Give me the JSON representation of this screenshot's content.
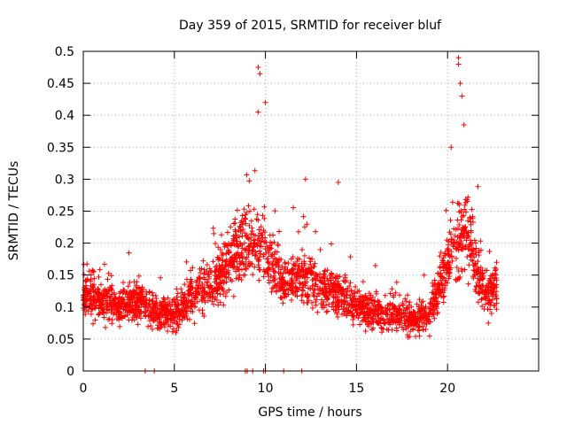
{
  "chart_data": {
    "type": "scatter",
    "title": "Day 359 of 2015, SRMTID for receiver bluf",
    "xlabel": "GPS time / hours",
    "ylabel": "SRMTID / TECUs",
    "xlim": [
      0,
      25
    ],
    "ylim": [
      0,
      0.5
    ],
    "x_ticks": [
      0,
      5,
      10,
      15,
      20
    ],
    "y_ticks": [
      0,
      0.05,
      0.1,
      0.15,
      0.2,
      0.25,
      0.3,
      0.35,
      0.4,
      0.45,
      0.5
    ],
    "grid": true,
    "marker": "+",
    "series": [
      {
        "name": "SRMTID",
        "color": "#ff0000",
        "profile_hours": [
          0,
          1,
          2,
          3,
          4,
          5,
          6,
          7,
          8,
          9,
          10,
          11,
          12,
          13,
          14,
          15,
          16,
          17,
          18,
          19,
          20,
          21,
          22,
          22.7
        ],
        "profile_median": [
          0.12,
          0.11,
          0.1,
          0.11,
          0.09,
          0.09,
          0.12,
          0.13,
          0.17,
          0.2,
          0.18,
          0.14,
          0.15,
          0.13,
          0.12,
          0.1,
          0.09,
          0.09,
          0.08,
          0.09,
          0.17,
          0.22,
          0.12,
          0.13
        ],
        "peaks": [
          {
            "x": 9.6,
            "y": 0.475
          },
          {
            "x": 9.7,
            "y": 0.465
          },
          {
            "x": 10.0,
            "y": 0.42
          },
          {
            "x": 9.6,
            "y": 0.405
          },
          {
            "x": 12.2,
            "y": 0.3
          },
          {
            "x": 14.0,
            "y": 0.295
          },
          {
            "x": 20.6,
            "y": 0.49
          },
          {
            "x": 20.6,
            "y": 0.48
          },
          {
            "x": 20.7,
            "y": 0.45
          },
          {
            "x": 20.8,
            "y": 0.43
          },
          {
            "x": 20.9,
            "y": 0.385
          },
          {
            "x": 20.2,
            "y": 0.35
          }
        ],
        "zeros_x": [
          3.4,
          3.9,
          8.9,
          9.0,
          9.3,
          9.9,
          10.0,
          11.0,
          12.0
        ]
      }
    ]
  }
}
